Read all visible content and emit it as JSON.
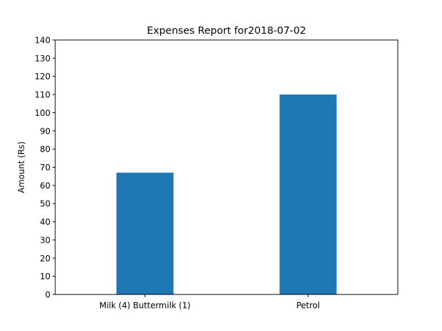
{
  "chart_data": {
    "type": "bar",
    "title": "Expenses Report for2018-07-02",
    "xlabel": "",
    "ylabel": "Amount (Rs)",
    "categories": [
      "Milk (4) Buttermilk (1)",
      "Petrol"
    ],
    "values": [
      67,
      110
    ],
    "ylim": [
      0,
      140
    ],
    "yticks": [
      0,
      10,
      20,
      30,
      40,
      50,
      60,
      70,
      80,
      90,
      100,
      110,
      120,
      130,
      140
    ],
    "grid": false,
    "bar_color": "#1f77b4"
  }
}
